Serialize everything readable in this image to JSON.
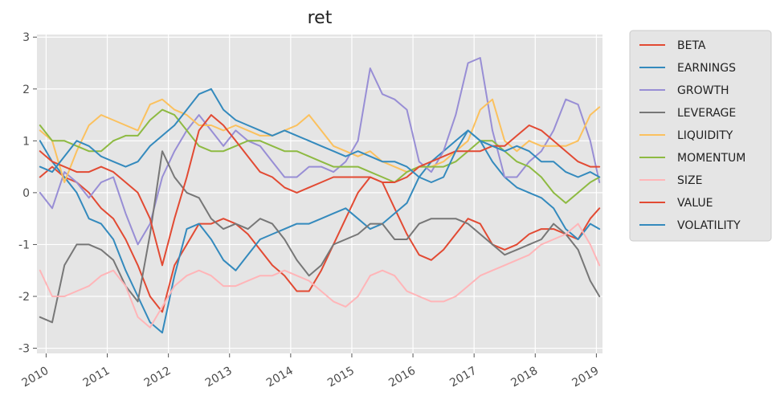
{
  "chart_data": {
    "type": "line",
    "title": "ret",
    "xlabel": "",
    "ylabel": "",
    "x_tick_labels": [
      "2010",
      "2011",
      "2012",
      "2013",
      "2014",
      "2015",
      "2016",
      "2017",
      "2018",
      "2019"
    ],
    "y_ticks": [
      -3,
      -2,
      -1,
      0,
      1,
      2,
      3
    ],
    "xlim": [
      2009.85,
      2019.1
    ],
    "ylim": [
      -3.1,
      3.05
    ],
    "grid": true,
    "background": "#e5e5e5",
    "legend_position": "outside-right-top",
    "x": [
      2009.9,
      2010.1,
      2010.3,
      2010.5,
      2010.7,
      2010.9,
      2011.1,
      2011.3,
      2011.5,
      2011.7,
      2011.9,
      2012.1,
      2012.3,
      2012.5,
      2012.7,
      2012.9,
      2013.1,
      2013.3,
      2013.5,
      2013.7,
      2013.9,
      2014.1,
      2014.3,
      2014.5,
      2014.7,
      2014.9,
      2015.1,
      2015.3,
      2015.5,
      2015.7,
      2015.9,
      2016.1,
      2016.3,
      2016.5,
      2016.7,
      2016.9,
      2017.1,
      2017.3,
      2017.5,
      2017.7,
      2017.9,
      2018.1,
      2018.3,
      2018.5,
      2018.7,
      2018.9,
      2019.05
    ],
    "series": [
      {
        "name": "BETA",
        "color": "#e24a33",
        "values": [
          0.3,
          0.5,
          0.3,
          0.2,
          0.0,
          -0.3,
          -0.5,
          -0.9,
          -1.4,
          -2.0,
          -2.3,
          -1.4,
          -1.0,
          -0.6,
          -0.6,
          -0.5,
          -0.6,
          -0.8,
          -1.1,
          -1.4,
          -1.6,
          -1.9,
          -1.9,
          -1.5,
          -1.0,
          -0.5,
          0.0,
          0.3,
          0.2,
          -0.3,
          -0.8,
          -1.2,
          -1.3,
          -1.1,
          -0.8,
          -0.5,
          -0.6,
          -1.0,
          -1.1,
          -1.0,
          -0.8,
          -0.7,
          -0.7,
          -0.8,
          -0.9,
          -0.5,
          -0.3
        ]
      },
      {
        "name": "EARNINGS",
        "color": "#348abd",
        "values": [
          1.0,
          0.6,
          0.3,
          0.0,
          -0.5,
          -0.6,
          -0.9,
          -1.5,
          -2.0,
          -2.5,
          -2.7,
          -1.6,
          -0.7,
          -0.6,
          -0.9,
          -1.3,
          -1.5,
          -1.2,
          -0.9,
          -0.8,
          -0.7,
          -0.6,
          -0.6,
          -0.5,
          -0.4,
          -0.3,
          -0.5,
          -0.7,
          -0.6,
          -0.4,
          -0.2,
          0.3,
          0.6,
          0.8,
          1.0,
          1.2,
          1.0,
          0.6,
          0.3,
          0.1,
          0.0,
          -0.1,
          -0.3,
          -0.7,
          -0.9,
          -0.6,
          -0.7
        ]
      },
      {
        "name": "GROWTH",
        "color": "#988ed5",
        "values": [
          0.0,
          -0.3,
          0.4,
          0.2,
          -0.1,
          0.2,
          0.3,
          -0.4,
          -1.0,
          -0.6,
          0.3,
          0.8,
          1.2,
          1.5,
          1.2,
          0.9,
          1.2,
          1.0,
          0.9,
          0.6,
          0.3,
          0.3,
          0.5,
          0.5,
          0.4,
          0.6,
          1.0,
          2.4,
          1.9,
          1.8,
          1.6,
          0.6,
          0.4,
          0.8,
          1.5,
          2.5,
          2.6,
          1.2,
          0.3,
          0.3,
          0.6,
          0.8,
          1.2,
          1.8,
          1.7,
          1.0,
          0.2
        ]
      },
      {
        "name": "LEVERAGE",
        "color": "#777777",
        "values": [
          -2.4,
          -2.5,
          -1.4,
          -1.0,
          -1.0,
          -1.1,
          -1.3,
          -1.8,
          -2.1,
          -0.8,
          0.8,
          0.3,
          0.0,
          -0.1,
          -0.5,
          -0.7,
          -0.6,
          -0.7,
          -0.5,
          -0.6,
          -0.9,
          -1.3,
          -1.6,
          -1.4,
          -1.0,
          -0.9,
          -0.8,
          -0.6,
          -0.6,
          -0.9,
          -0.9,
          -0.6,
          -0.5,
          -0.5,
          -0.5,
          -0.6,
          -0.8,
          -1.0,
          -1.2,
          -1.1,
          -1.0,
          -0.9,
          -0.6,
          -0.8,
          -1.1,
          -1.7,
          -2.0
        ]
      },
      {
        "name": "LIQUIDITY",
        "color": "#fbc15e",
        "values": [
          1.2,
          1.0,
          0.2,
          0.8,
          1.3,
          1.5,
          1.4,
          1.3,
          1.2,
          1.7,
          1.8,
          1.6,
          1.5,
          1.3,
          1.3,
          1.2,
          1.3,
          1.2,
          1.1,
          1.1,
          1.2,
          1.3,
          1.5,
          1.2,
          0.9,
          0.8,
          0.7,
          0.8,
          0.6,
          0.5,
          0.4,
          0.5,
          0.5,
          0.6,
          0.8,
          1.0,
          1.6,
          1.8,
          1.0,
          0.8,
          1.0,
          0.9,
          0.9,
          0.9,
          1.0,
          1.5,
          1.65
        ]
      },
      {
        "name": "MOMENTUM",
        "color": "#8eba42",
        "values": [
          1.3,
          1.0,
          1.0,
          0.9,
          0.8,
          0.8,
          1.0,
          1.1,
          1.1,
          1.4,
          1.6,
          1.5,
          1.2,
          0.9,
          0.8,
          0.8,
          0.9,
          1.0,
          1.0,
          0.9,
          0.8,
          0.8,
          0.7,
          0.6,
          0.5,
          0.5,
          0.5,
          0.4,
          0.3,
          0.2,
          0.4,
          0.5,
          0.5,
          0.5,
          0.6,
          0.8,
          1.0,
          1.0,
          0.8,
          0.6,
          0.5,
          0.3,
          0.0,
          -0.2,
          0.0,
          0.2,
          0.3
        ]
      },
      {
        "name": "SIZE",
        "color": "#ffb5b8",
        "values": [
          -1.5,
          -2.0,
          -2.0,
          -1.9,
          -1.8,
          -1.6,
          -1.5,
          -1.8,
          -2.4,
          -2.6,
          -2.2,
          -1.8,
          -1.6,
          -1.5,
          -1.6,
          -1.8,
          -1.8,
          -1.7,
          -1.6,
          -1.6,
          -1.5,
          -1.6,
          -1.7,
          -1.9,
          -2.1,
          -2.2,
          -2.0,
          -1.6,
          -1.5,
          -1.6,
          -1.9,
          -2.0,
          -2.1,
          -2.1,
          -2.0,
          -1.8,
          -1.6,
          -1.5,
          -1.4,
          -1.3,
          -1.2,
          -1.0,
          -0.9,
          -0.8,
          -0.6,
          -1.0,
          -1.4
        ]
      },
      {
        "name": "VALUE",
        "color": "#e24a33",
        "values": [
          0.8,
          0.6,
          0.5,
          0.4,
          0.4,
          0.5,
          0.4,
          0.2,
          0.0,
          -0.5,
          -1.4,
          -0.5,
          0.3,
          1.2,
          1.5,
          1.3,
          1.0,
          0.7,
          0.4,
          0.3,
          0.1,
          0.0,
          0.1,
          0.2,
          0.3,
          0.3,
          0.3,
          0.3,
          0.2,
          0.2,
          0.3,
          0.5,
          0.6,
          0.7,
          0.8,
          0.8,
          0.8,
          0.9,
          0.9,
          1.1,
          1.3,
          1.2,
          1.0,
          0.8,
          0.6,
          0.5,
          0.5
        ]
      },
      {
        "name": "VOLATILITY",
        "color": "#348abd",
        "values": [
          0.5,
          0.4,
          0.7,
          1.0,
          0.9,
          0.7,
          0.6,
          0.5,
          0.6,
          0.9,
          1.1,
          1.3,
          1.6,
          1.9,
          2.0,
          1.6,
          1.4,
          1.3,
          1.2,
          1.1,
          1.2,
          1.1,
          1.0,
          0.9,
          0.8,
          0.7,
          0.8,
          0.7,
          0.6,
          0.6,
          0.5,
          0.3,
          0.2,
          0.3,
          0.8,
          1.2,
          1.0,
          0.9,
          0.8,
          0.9,
          0.8,
          0.6,
          0.6,
          0.4,
          0.3,
          0.4,
          0.3
        ]
      }
    ]
  }
}
